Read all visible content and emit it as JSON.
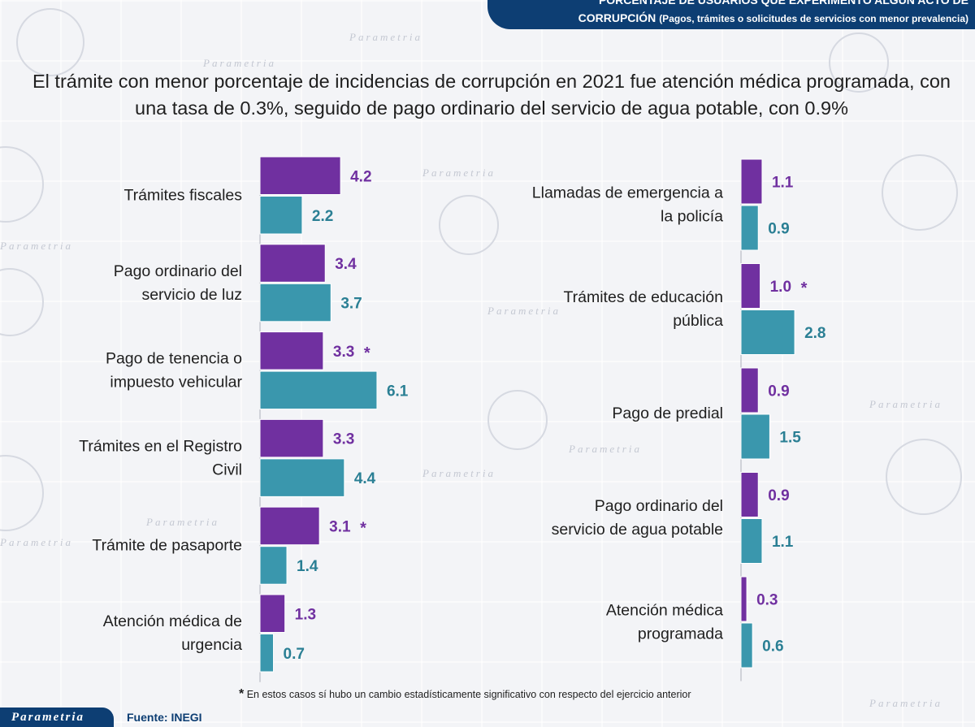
{
  "banner": {
    "line1": "PORCENTAJE DE USUARIOS QUE EXPERIMENTÓ ALGÚN ACTO DE",
    "line2": "CORRUPCIÓN",
    "line2_note": "(Pagos, trámites o solicitudes de servicios con menor prevalencia)"
  },
  "headline": "El trámite con menor porcentaje de incidencias de corrupción en 2021 fue atención médica programada, con una tasa de 0.3%, seguido de pago ordinario del servicio de agua potable, con 0.9%",
  "watermark": "Parametria",
  "chart_data": [
    {
      "type": "bar",
      "orientation": "horizontal",
      "categories": [
        "Trámites fiscales",
        "Pago ordinario del servicio de luz",
        "Pago de tenencia o impuesto vehicular",
        "Trámites en el Registro Civil",
        "Trámite de pasaporte",
        "Atención médica de urgencia"
      ],
      "series": [
        {
          "name": "2021",
          "color": "#7030a0",
          "values": [
            4.2,
            3.4,
            3.3,
            3.3,
            3.1,
            1.3
          ],
          "labels": [
            "4.2",
            "3.4",
            "3.3",
            "3.3",
            "3.1",
            "1.3"
          ],
          "significant": [
            false,
            false,
            true,
            false,
            true,
            false
          ]
        },
        {
          "name": "ejercicio anterior",
          "color": "#3a97ad",
          "values": [
            2.2,
            3.7,
            6.1,
            4.4,
            1.4,
            0.7
          ],
          "labels": [
            "2.2",
            "3.7",
            "6.1",
            "4.4",
            "1.4",
            "0.7"
          ]
        }
      ],
      "xlim": [
        0,
        6.1
      ]
    },
    {
      "type": "bar",
      "orientation": "horizontal",
      "categories": [
        "Llamadas de emergencia a la policía",
        "Trámites de educación pública",
        "Pago de predial",
        "Pago ordinario del servicio de agua potable",
        "Atención médica programada"
      ],
      "series": [
        {
          "name": "2021",
          "color": "#7030a0",
          "values": [
            1.1,
            1.0,
            0.9,
            0.9,
            0.3
          ],
          "labels": [
            "1.1",
            "1.0",
            "0.9",
            "0.9",
            "0.3"
          ],
          "significant": [
            false,
            true,
            false,
            false,
            false
          ]
        },
        {
          "name": "ejercicio anterior",
          "color": "#3a97ad",
          "values": [
            0.9,
            2.8,
            1.5,
            1.1,
            0.6
          ],
          "labels": [
            "0.9",
            "2.8",
            "1.5",
            "1.1",
            "0.6"
          ]
        }
      ],
      "xlim": [
        0,
        6.1
      ]
    }
  ],
  "significance_marker": "*",
  "footnote": "En estos casos sí hubo un cambio estadísticamente significativo con respecto del ejercicio anterior",
  "logo": "Parametria",
  "source": "Fuente: INEGI"
}
